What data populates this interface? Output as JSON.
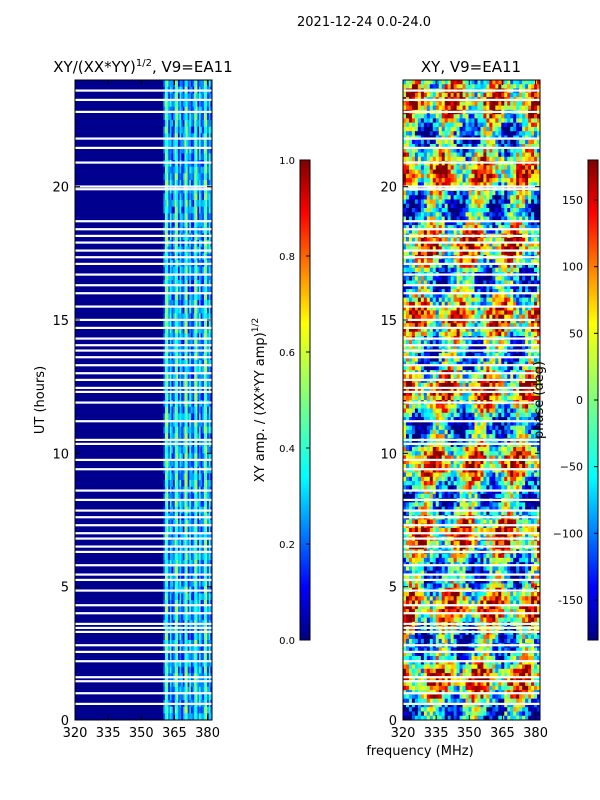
{
  "suptitle": "2021-12-24 0.0-24.0",
  "shared_xlabel": "frequency (MHz)",
  "colors": {
    "jet": [
      "#00007f",
      "#0000ff",
      "#007fff",
      "#00ffff",
      "#7fff7f",
      "#ffff00",
      "#ff7f00",
      "#ff0000",
      "#7f0000"
    ],
    "gap": "#ffffff",
    "axis": "#000000"
  },
  "chart_data": [
    {
      "type": "heatmap",
      "title_main": "XY/(XX*YY)",
      "title_sup": "1/2",
      "title_tail": ", V9=EA11",
      "xlabel": "",
      "ylabel": "UT (hours)",
      "xlim": [
        320,
        382
      ],
      "ylim": [
        0,
        24
      ],
      "xticks": [
        320,
        335,
        350,
        365,
        380
      ],
      "yticks": [
        0,
        5,
        10,
        15,
        20
      ],
      "bright_band_mhz": [
        360,
        382
      ],
      "colorbar": {
        "label_main": "XY amp. / (XX*YY amp)",
        "label_sup": "1/2",
        "range": [
          0.0,
          1.0
        ],
        "ticks": [
          "0.0",
          "0.2",
          "0.4",
          "0.6",
          "0.8",
          "1.0"
        ]
      }
    },
    {
      "type": "heatmap",
      "title_main": "XY, V9=EA11",
      "xlabel": "frequency (MHz)",
      "ylabel": "",
      "xlim": [
        320,
        382
      ],
      "ylim": [
        0,
        24
      ],
      "xticks": [
        320,
        335,
        350,
        365,
        380
      ],
      "yticks": [
        0,
        5,
        10,
        15,
        20
      ],
      "colorbar": {
        "label": "phase (deg)",
        "range": [
          -180,
          180
        ],
        "ticks": [
          "-150",
          "−100",
          "−50",
          "0",
          "50",
          "100",
          "150"
        ]
      }
    }
  ],
  "gap_hours": [
    0.6,
    1.0,
    1.45,
    1.6,
    2.2,
    2.55,
    2.8,
    3.3,
    3.45,
    3.6,
    4.0,
    4.3,
    4.85,
    5.25,
    5.45,
    5.8,
    6.3,
    6.5,
    6.8,
    7.0,
    7.3,
    7.6,
    7.85,
    8.25,
    8.6,
    9.4,
    9.75,
    10.35,
    10.5,
    11.2,
    11.9,
    12.3,
    12.45,
    12.75,
    13.0,
    13.3,
    13.6,
    13.85,
    14.05,
    14.3,
    14.7,
    15.0,
    15.5,
    16.0,
    16.3,
    16.7,
    17.1,
    17.35,
    17.6,
    17.9,
    18.15,
    18.4,
    18.7,
    19.9,
    20.0,
    20.9,
    21.45,
    21.8,
    22.8,
    23.25,
    23.6
  ]
}
